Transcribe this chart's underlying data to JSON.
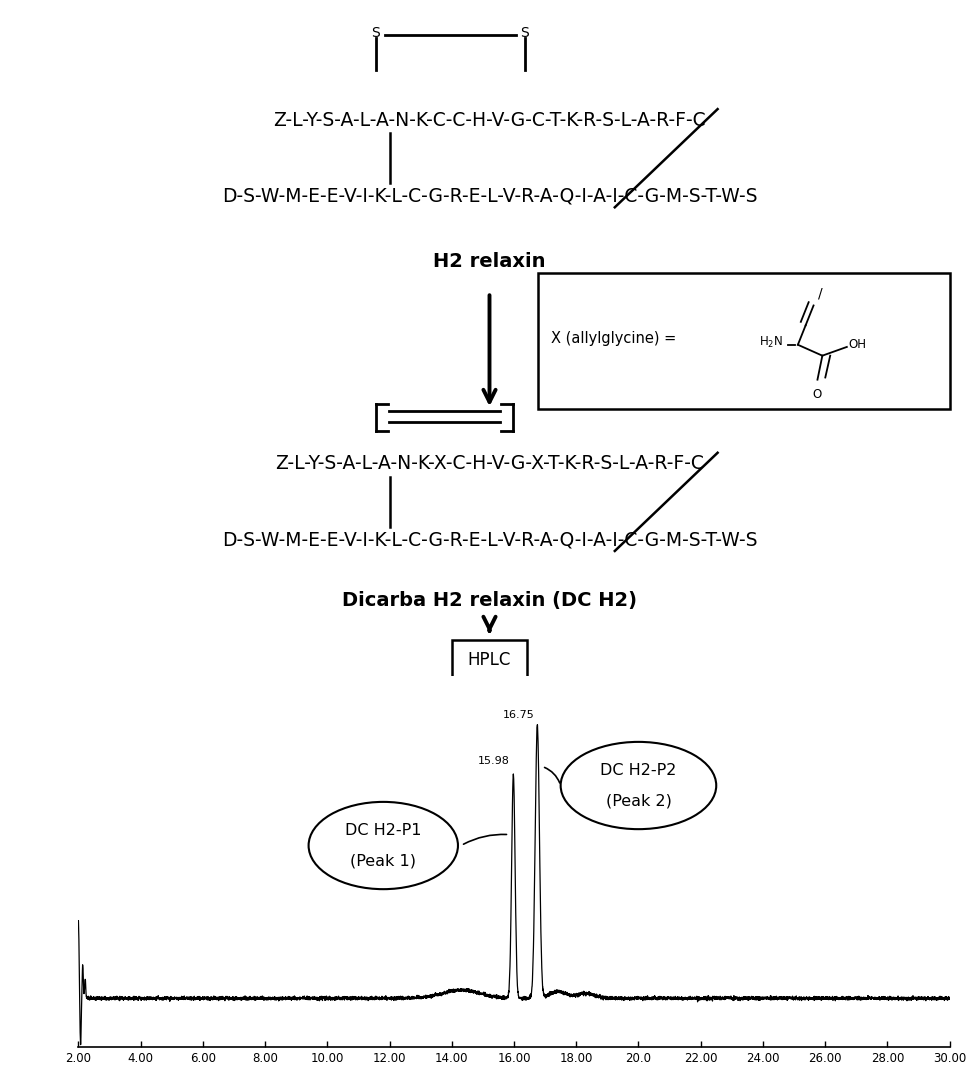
{
  "fig_width": 9.79,
  "fig_height": 10.91,
  "bg_color": "#ffffff",
  "h2relaxin_line1": "Z-L-Y-S-A-L-A-N-K-C-C-H-V-G-C-T-K-R-S-L-A-R-F-C",
  "h2relaxin_line2": "D-S-W-M-E-E-V-I-K-L-C-G-R-E-L-V-R-A-Q-I-A-I-C-G-M-S-T-W-S",
  "h2relaxin_label": "H2 relaxin",
  "dicarba_line1": "Z-L-Y-S-A-L-A-N-K-X-C-H-V-G-X-T-K-R-S-L-A-R-F-C",
  "dicarba_line2": "D-S-W-M-E-E-V-I-K-L-C-G-R-E-L-V-R-A-Q-I-A-I-C-G-M-S-T-W-S",
  "dicarba_label": "Dicarba H2 relaxin (DC H2)",
  "hplc_label": "HPLC",
  "peak1_time": "15.98",
  "peak2_time": "16.75",
  "xmin": 2.0,
  "xmax": 30.0,
  "xticks": [
    2.0,
    4.0,
    6.0,
    8.0,
    10.0,
    12.0,
    14.0,
    16.0,
    18.0,
    20.0,
    22.0,
    24.0,
    26.0,
    28.0,
    30.0
  ],
  "xtick_labels": [
    "2.00",
    "4.00",
    "6.00",
    "8.00",
    "10.00",
    "12.00",
    "14.00",
    "16.00",
    "18.00",
    "20.0",
    "22.00",
    "24.00",
    "26.00",
    "28.00",
    "30.00"
  ],
  "seq_fontsize": 13.5,
  "label_fontsize": 14,
  "font": "DejaVu Sans"
}
